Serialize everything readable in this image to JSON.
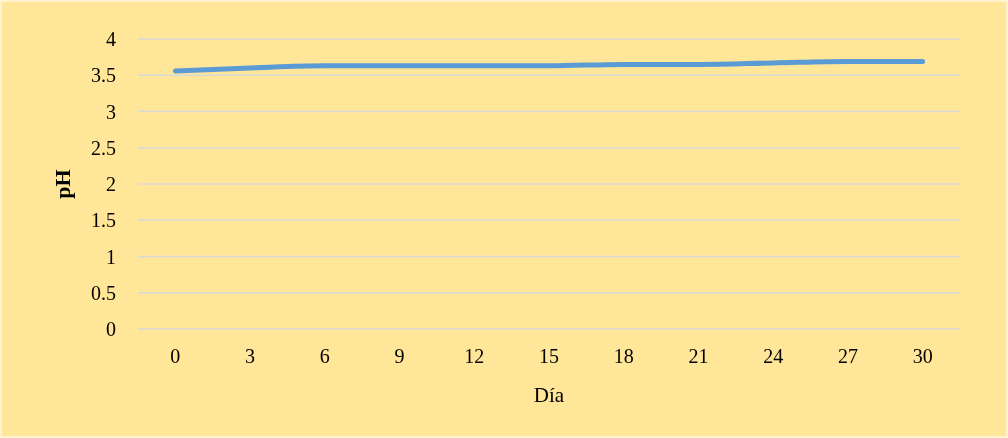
{
  "chart_data": {
    "type": "line",
    "xlabel": "Día",
    "ylabel": "pH",
    "categories": [
      "0",
      "3",
      "6",
      "9",
      "12",
      "15",
      "18",
      "21",
      "24",
      "27",
      "30"
    ],
    "series": [
      {
        "color": "#5b9bd5",
        "values": [
          3.56,
          3.6,
          3.63,
          3.63,
          3.63,
          3.63,
          3.65,
          3.65,
          3.67,
          3.69,
          3.69
        ]
      }
    ],
    "ylim": [
      0,
      4
    ],
    "yticks": [
      0,
      0.5,
      1,
      1.5,
      2,
      2.5,
      3,
      3.5,
      4
    ],
    "grid": "y",
    "marker": "none",
    "line_style": "solid"
  }
}
